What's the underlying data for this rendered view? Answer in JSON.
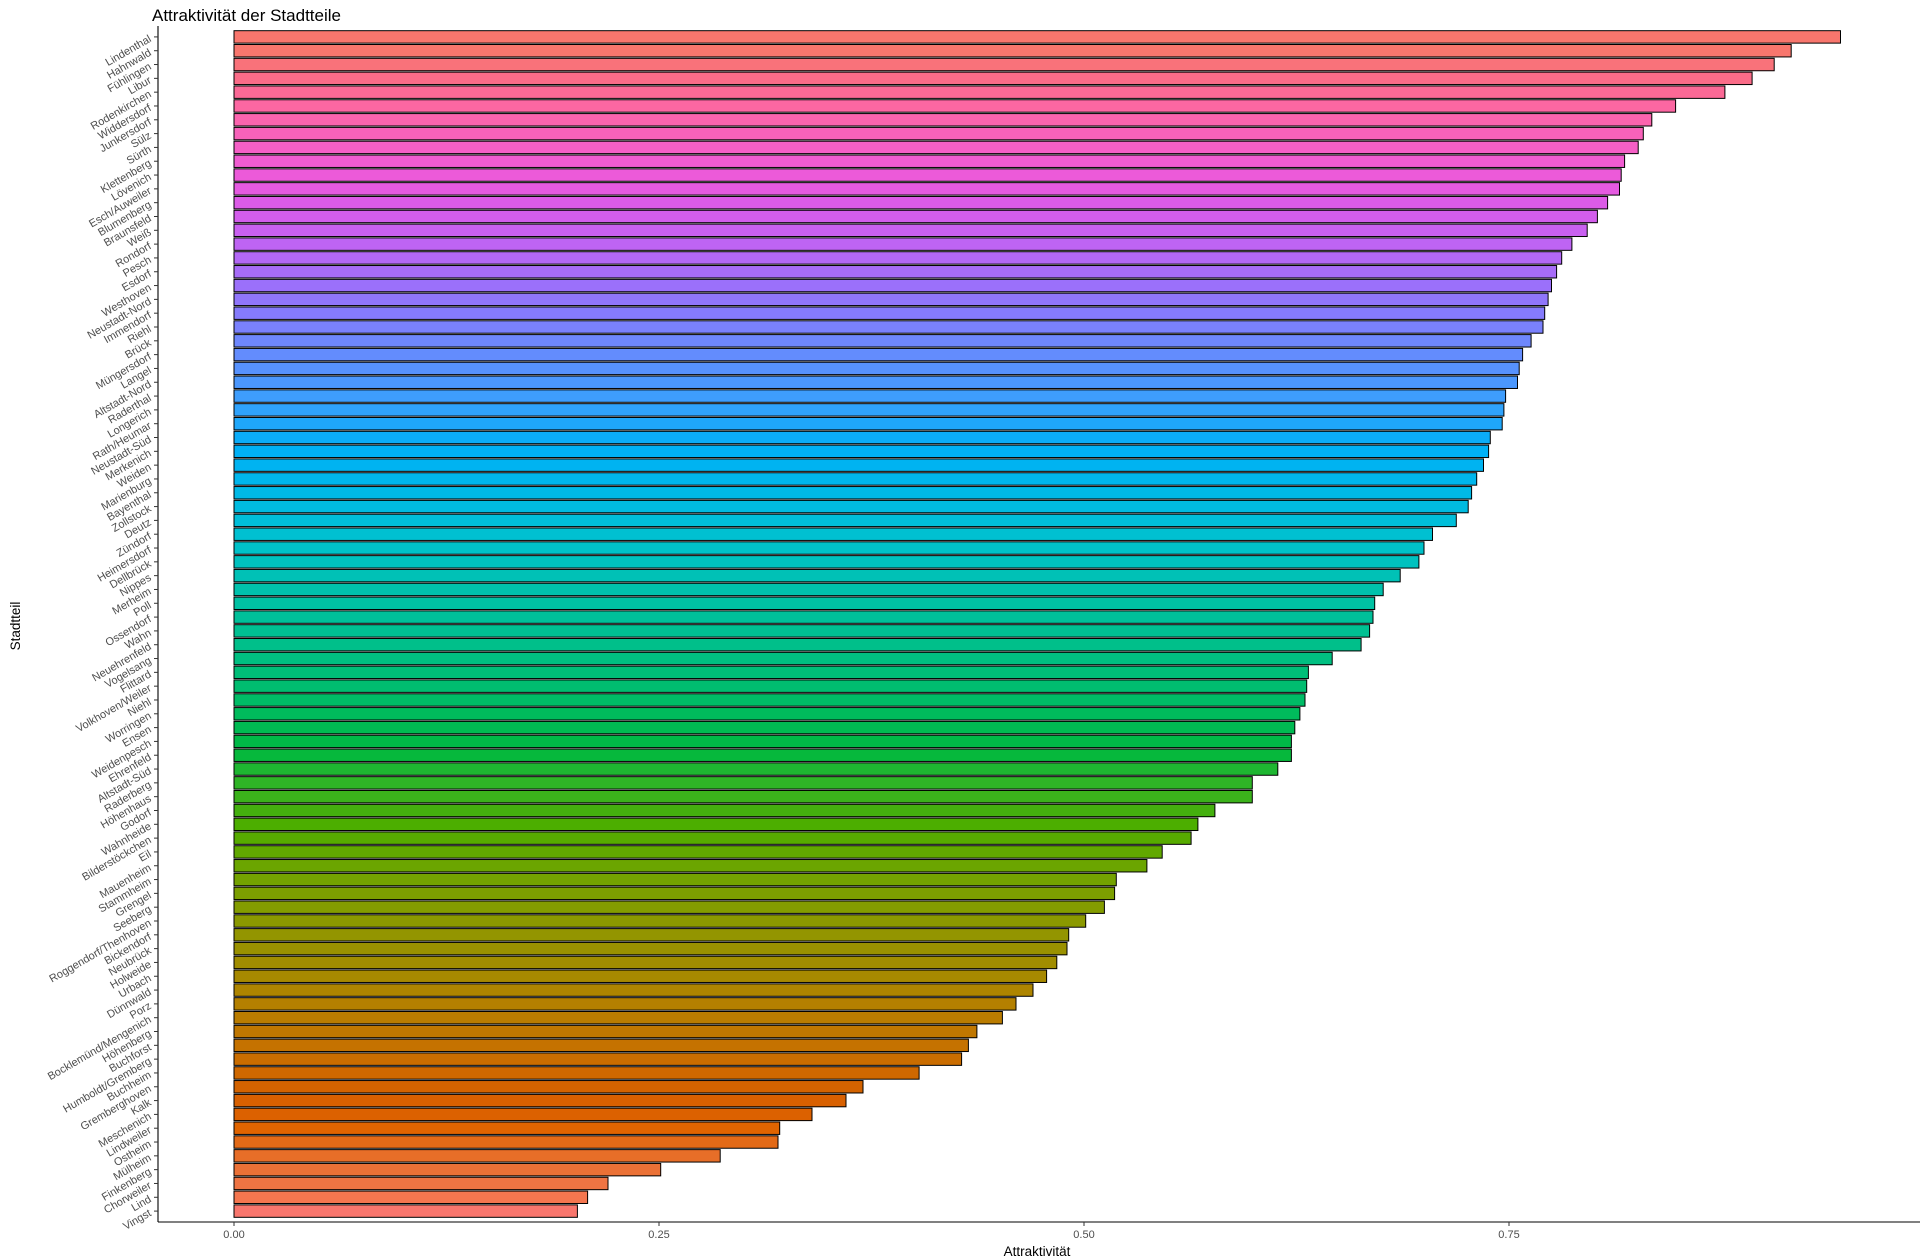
{
  "chart_data": {
    "type": "bar",
    "orientation": "horizontal",
    "title": "Attraktivität der Stadtteile",
    "xlabel": "Attraktivität",
    "ylabel": "Stadtteil",
    "xlim": [
      -0.04,
      0.99
    ],
    "xticks": [
      {
        "value": 0.0,
        "label": "0.00"
      },
      {
        "value": 0.25,
        "label": "0.25"
      },
      {
        "value": 0.5,
        "label": "0.50"
      },
      {
        "value": 0.75,
        "label": "0.75"
      }
    ],
    "grid": false,
    "legend": false,
    "bar_outline_color": "#000000",
    "colors": {
      "background": "#ffffff",
      "axis_line": "#000000",
      "tick_text": "#4d4d4d"
    },
    "categories": [
      "Lindenthal",
      "Hahnwald",
      "Fühlingen",
      "Libur",
      "Rodenkirchen",
      "Widdersdorf",
      "Junkersdorf",
      "Sülz",
      "Sürth",
      "Klettenberg",
      "Lövenich",
      "Esch/Auweiler",
      "Blumenberg",
      "Braunsfeld",
      "Weiß",
      "Rondorf",
      "Pesch",
      "Esdorf",
      "Westhoven",
      "Neustadt-Nord",
      "Immendorf",
      "Riehl",
      "Brück",
      "Müngersdorf",
      "Langel",
      "Altstadt-Nord",
      "Raderthal",
      "Longerich",
      "Rath/Heumar",
      "Neustadt-Süd",
      "Merkenich",
      "Weiden",
      "Marienburg",
      "Bayenthal",
      "Zollstock",
      "Deutz",
      "Zündorf",
      "Heimersdorf",
      "Dellbrück",
      "Nippes",
      "Merheim",
      "Poll",
      "Ossendorf",
      "Wahn",
      "Neuehrenfeld",
      "Vogelsang",
      "Flittard",
      "Volkhoven/Weiler",
      "Niehl",
      "Worringen",
      "Ensen",
      "Weidenpesch",
      "Ehrenfeld",
      "Altstadt-Süd",
      "Raderberg",
      "Höhenhaus",
      "Godorf",
      "Wahnheide",
      "Bilderstöckchen",
      "Eil",
      "Mauenheim",
      "Stammheim",
      "Grengel",
      "Seeberg",
      "Roggendorf/Thenhoven",
      "Bickendorf",
      "Neubrück",
      "Holweide",
      "Urbach",
      "Dünnwald",
      "Porz",
      "Bocklemünd/Mengenich",
      "Höhenberg",
      "Buchforst",
      "Humboldt/Gremberg",
      "Buchheim",
      "Gremberghoven",
      "Kalk",
      "Meschenich",
      "Lindweiler",
      "Ostheim",
      "Mülheim",
      "Finkenberg",
      "Chorweiler",
      "Lind",
      "Vingst"
    ],
    "values": [
      0.945,
      0.916,
      0.906,
      0.893,
      0.877,
      0.848,
      0.834,
      0.829,
      0.826,
      0.818,
      0.816,
      0.815,
      0.808,
      0.802,
      0.796,
      0.787,
      0.781,
      0.778,
      0.775,
      0.773,
      0.771,
      0.77,
      0.763,
      0.758,
      0.756,
      0.755,
      0.748,
      0.747,
      0.746,
      0.739,
      0.738,
      0.735,
      0.731,
      0.728,
      0.726,
      0.719,
      0.705,
      0.7,
      0.697,
      0.686,
      0.676,
      0.671,
      0.67,
      0.668,
      0.663,
      0.646,
      0.632,
      0.631,
      0.63,
      0.627,
      0.624,
      0.622,
      0.622,
      0.614,
      0.599,
      0.599,
      0.577,
      0.567,
      0.563,
      0.546,
      0.537,
      0.519,
      0.518,
      0.512,
      0.501,
      0.491,
      0.49,
      0.484,
      0.478,
      0.47,
      0.46,
      0.452,
      0.437,
      0.432,
      0.428,
      0.403,
      0.37,
      0.36,
      0.34,
      0.321,
      0.32,
      0.286,
      0.251,
      0.22,
      0.208,
      0.202
    ],
    "bar_colors": [
      "#F8766D",
      "#F8766D",
      "#F9727A",
      "#FA6C88",
      "#FB6996",
      "#FC67A2",
      "#FB64AE",
      "#F862BA",
      "#F55FC6",
      "#F05CD1",
      "#EC5AD9",
      "#E55AE1",
      "#DC5BE7",
      "#D35DEC",
      "#C960F0",
      "#BE64F3",
      "#B368F6",
      "#A76CF8",
      "#9B70FA",
      "#9076FB",
      "#857BFC",
      "#7A81FD",
      "#6E87FD",
      "#638CFD",
      "#5792FD",
      "#4B97FD",
      "#3E9DFC",
      "#2FA2FB",
      "#1FA7FA",
      "#0BACF8",
      "#00B0F6",
      "#00B3F1",
      "#00B6EC",
      "#00B9E6",
      "#00BBE0",
      "#00BED9",
      "#00C0D1",
      "#00C1C8",
      "#00C1BF",
      "#00C1B6",
      "#00C1AC",
      "#00C1A3",
      "#00C09A",
      "#00C092",
      "#00BF8A",
      "#00BF81",
      "#00BE78",
      "#00BD70",
      "#00BC66",
      "#00BB5C",
      "#00BA52",
      "#00B947",
      "#06B83C",
      "#1EB631",
      "#2FB426",
      "#3BB21B",
      "#44B00E",
      "#4CAE00",
      "#57AB00",
      "#61A800",
      "#6BA500",
      "#74A200",
      "#7C9F00",
      "#849C00",
      "#8B9900",
      "#939500",
      "#9A9100",
      "#A18D00",
      "#A78900",
      "#AE8500",
      "#B48000",
      "#BA7C00",
      "#C07700",
      "#C57200",
      "#CA6D00",
      "#CF6800",
      "#D36300",
      "#D86000",
      "#DC6100",
      "#E06400",
      "#E36A17",
      "#E76E28",
      "#EB7136",
      "#EF7443",
      "#F4764F",
      "#F8766D"
    ]
  }
}
